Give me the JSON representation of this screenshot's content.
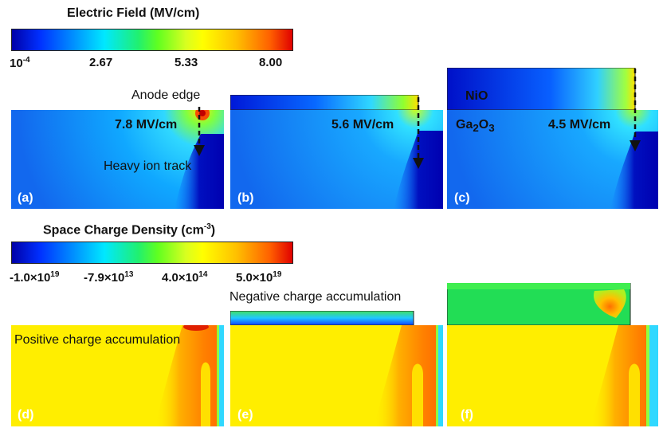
{
  "electric_field_colorbar": {
    "title": "Electric Field (MV/cm)",
    "tick_min_base": "10",
    "tick_min_exp": "-4",
    "ticks": [
      "2.67",
      "5.33",
      "8.00"
    ]
  },
  "space_charge_colorbar": {
    "title_prefix": "Space Charge Density (cm",
    "title_exp": "-3",
    "title_suffix": ")",
    "ticks": [
      {
        "mant": "-1.0×10",
        "exp": "19"
      },
      {
        "mant": "-7.9×10",
        "exp": "13"
      },
      {
        "mant": "4.0×10",
        "exp": "14"
      },
      {
        "mant": "5.0×10",
        "exp": "19"
      }
    ]
  },
  "field_panels": {
    "a": {
      "label": "(a)",
      "peak": "7.8 MV/cm",
      "anode_edge": "Anode edge",
      "ion_track": "Heavy ion track"
    },
    "b": {
      "label": "(b)",
      "peak": "5.6 MV/cm"
    },
    "c": {
      "label": "(c)",
      "peak": "4.5 MV/cm",
      "nio": "NiO",
      "ga_base": "Ga",
      "ga_sub1": "2",
      "ga_mid": "O",
      "ga_sub2": "3"
    }
  },
  "charge_panels": {
    "d": {
      "label": "(d)",
      "annotation": "Positive charge accumulation"
    },
    "e": {
      "label": "(e)",
      "annotation": "Negative charge accumulation"
    },
    "f": {
      "label": "(f)"
    }
  },
  "colors": {
    "field_bg": "#1874ff",
    "field_dark": "#0000c8",
    "charge_bg": "#ffee00",
    "charge_orange": "#ff8c00",
    "nio_green": "#22dd55",
    "cyan": "#30d8ff"
  }
}
